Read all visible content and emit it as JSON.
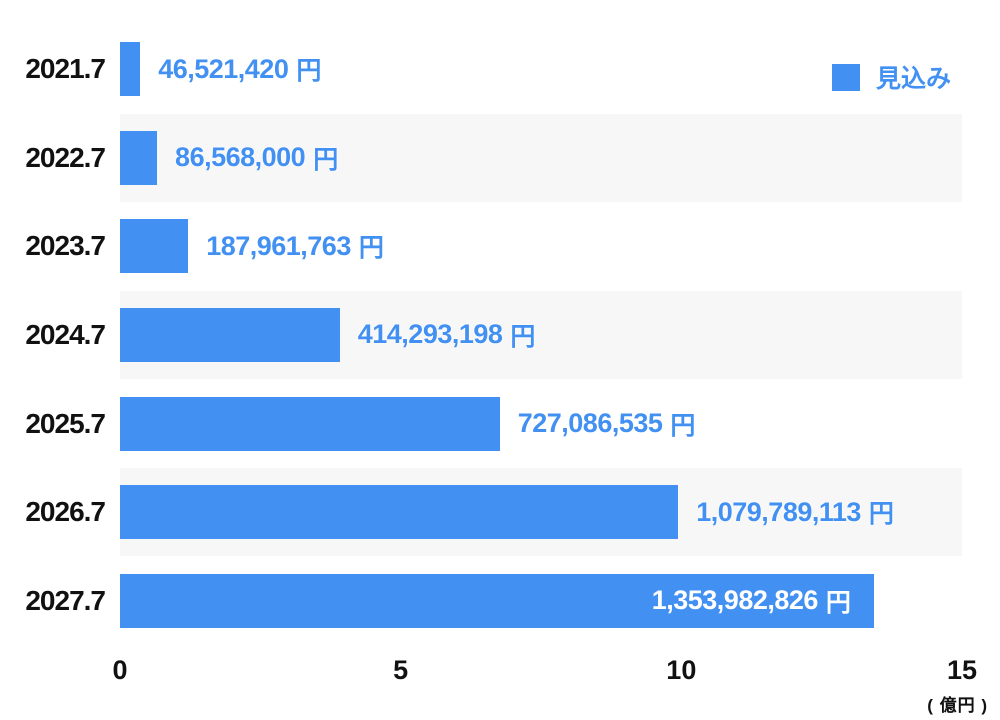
{
  "chart_data": {
    "type": "bar",
    "orientation": "horizontal",
    "categories": [
      "2021.7",
      "2022.7",
      "2023.7",
      "2024.7",
      "2025.7",
      "2026.7",
      "2027.7"
    ],
    "values": [
      46521420,
      86568000,
      187961763,
      414293198,
      727086535,
      1079789113,
      1353982826
    ],
    "value_labels": [
      "46,521,420",
      "86,568,000",
      "187,961,763",
      "414,293,198",
      "727,086,535",
      "1,079,789,113",
      "1,353,982,826"
    ],
    "value_unit": "円",
    "series_name": "見込み",
    "x_ticks": [
      0,
      5,
      10,
      15
    ],
    "x_tick_labels": [
      "0",
      "5",
      "10",
      "15"
    ],
    "xlim": [
      0,
      15
    ],
    "axis_unit_label": "( 億円 )",
    "legend": {
      "label": "見込み",
      "position": "top-right"
    },
    "grid": false,
    "bar_display_pct": [
      2.4,
      4.4,
      8.1,
      26.1,
      45.1,
      66.3,
      89.6
    ],
    "last_label_inside": true,
    "colors": {
      "bar": "#4190F2",
      "value_label": "#4190F2",
      "value_label_inside": "#ffffff",
      "stripe": "#f7f7f8",
      "axis_text": "#111111",
      "legend_text": "#4190F2",
      "background": "#ffffff"
    }
  }
}
